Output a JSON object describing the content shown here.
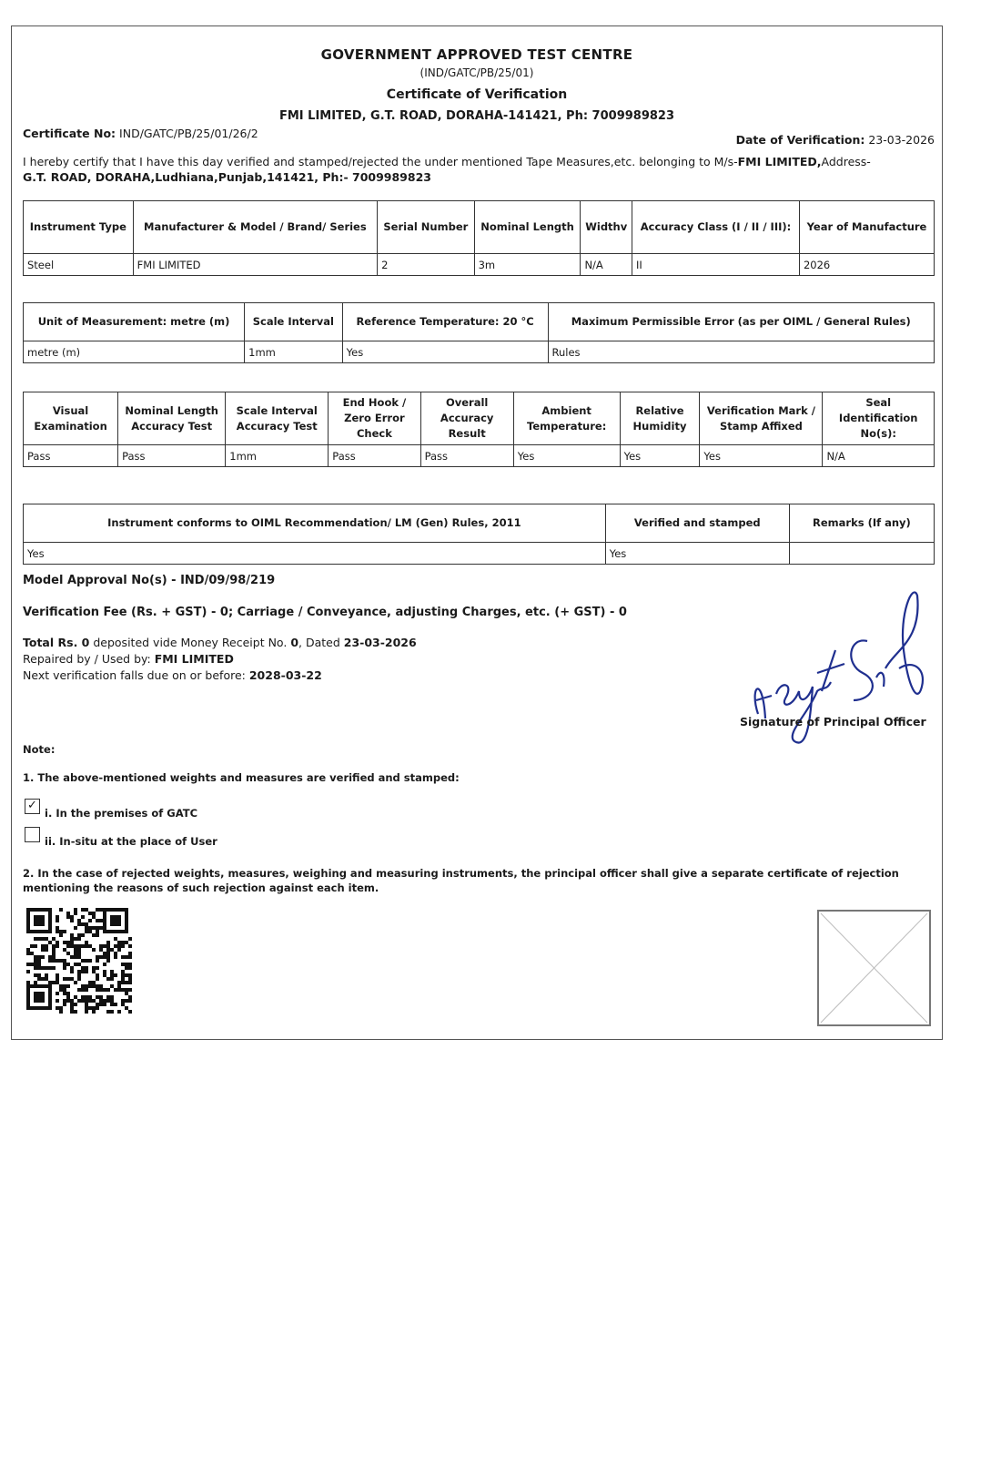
{
  "header": {
    "title": "GOVERNMENT APPROVED TEST CENTRE",
    "code": "(IND/GATC/PB/25/01)",
    "subtitle": "Certificate of Verification",
    "address": "FMI LIMITED, G.T. ROAD, DORAHA-141421, Ph: 7009989823"
  },
  "cert": {
    "no_label": "Certificate No:",
    "no": "IND/GATC/PB/25/01/26/2",
    "date_label": "Date of Verification:",
    "date": "23-03-2026",
    "intro": "I hereby certify that I have this day verified and stamped/rejected the under mentioned Tape Measures,etc. belonging to M/s-",
    "owner": "FMI LIMITED,",
    "addr_label": "Address-",
    "addr": "G.T. ROAD, DORAHA,Ludhiana,Punjab,141421, Ph:- 7009989823"
  },
  "table1": {
    "headers": [
      "Instrument Type",
      "Manufacturer & Model / Brand/ Series",
      "Serial Number",
      "Nominal Length",
      "Widthv",
      "Accuracy Class (I / II / III):",
      "Year of Manufacture"
    ],
    "row": [
      "Steel",
      "FMI LIMITED",
      "2",
      "3m",
      "N/A",
      "II",
      "2026"
    ]
  },
  "table2": {
    "headers": [
      "Unit of Measurement: metre (m)",
      "Scale Interval",
      "Reference Temperature: 20 °C",
      "Maximum Permissible Error (as per OIML / General Rules)"
    ],
    "row": [
      "metre (m)",
      "1mm",
      "Yes",
      "Rules"
    ]
  },
  "table3": {
    "headers": [
      "Visual Examination",
      "Nominal Length Accuracy Test",
      "Scale Interval Accuracy Test",
      "End Hook / Zero Error Check",
      "Overall Accuracy Result",
      "Ambient Temperature:",
      "Relative Humidity",
      "Verification Mark / Stamp Affixed",
      "Seal Identification No(s):"
    ],
    "row": [
      "Pass",
      "Pass",
      "1mm",
      "Pass",
      "Pass",
      "Yes",
      "Yes",
      "Yes",
      "N/A"
    ]
  },
  "table4": {
    "headers": [
      "Instrument conforms to OIML Recommendation/ LM (Gen) Rules, 2011",
      "Verified and stamped",
      "Remarks (If any)"
    ],
    "row": [
      "Yes",
      "Yes",
      ""
    ]
  },
  "details": {
    "model": "Model Approval No(s) - IND/09/98/219",
    "fee": "Verification Fee (Rs. + GST) - 0; Carriage / Conveyance, adjusting Charges, etc. (+ GST) - 0",
    "total_a": "Total Rs. 0",
    "total_b": " deposited vide Money Receipt No. ",
    "receipt": "0",
    "total_c": ", Dated ",
    "total_date": "23-03-2026",
    "repaired_label": "Repaired by / Used by: ",
    "repaired": "FMI LIMITED",
    "next_label": "Next verification falls due on or before: ",
    "next": "2028-03-22"
  },
  "signature": {
    "label": "Signature of Principal Officer"
  },
  "note": {
    "title": "Note:",
    "n1": "1. The above-mentioned weights and measures are verified and stamped:",
    "opt1": "i. In the premises of GATC",
    "opt1_checked": true,
    "opt2": "ii. In-situ at the place of User",
    "opt2_checked": false,
    "check": "✓",
    "n2": "2. In the case of rejected weights, measures, weighing and measuring instruments, the principal officer shall give a separate certificate of rejection mentioning the reasons of such rejection against each item."
  },
  "colors": {
    "signature": "#1f2f8f",
    "border": "#333333"
  }
}
